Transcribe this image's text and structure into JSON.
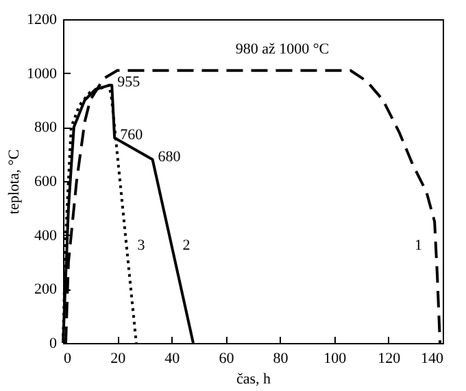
{
  "chart_data": {
    "type": "line",
    "xlabel": "čas, h",
    "ylabel": "teplota, °C",
    "xlim": [
      0,
      140
    ],
    "xticks": [
      0,
      20,
      40,
      60,
      80,
      100,
      120,
      140
    ],
    "ylim": [
      0,
      1200
    ],
    "yticks": [
      0,
      200,
      400,
      600,
      800,
      1000,
      1200
    ],
    "grid": false,
    "series": [
      {
        "name": "1",
        "color": "#000000",
        "line_style": "dashed",
        "x": [
          1,
          2,
          5,
          8,
          10,
          15,
          20,
          106,
          112,
          118,
          124,
          129,
          134,
          137,
          138,
          139
        ],
        "values": [
          0,
          300,
          600,
          820,
          900,
          980,
          1010,
          1010,
          970,
          900,
          780,
          660,
          560,
          450,
          250,
          0
        ]
      },
      {
        "name": "2",
        "color": "#000000",
        "line_style": "solid",
        "x": [
          0,
          2,
          4,
          8,
          12,
          17,
          18,
          19,
          33,
          48
        ],
        "values": [
          0,
          500,
          800,
          900,
          940,
          955,
          955,
          760,
          680,
          0
        ]
      },
      {
        "name": "3",
        "color": "#000000",
        "line_style": "dotted",
        "x": [
          0,
          1,
          3,
          6,
          10,
          17,
          18,
          20,
          27
        ],
        "values": [
          0,
          400,
          800,
          880,
          930,
          955,
          900,
          700,
          0
        ]
      }
    ],
    "annotations": [
      "980 až 1000 °C",
      {
        "text": "955",
        "x": 18,
        "y": 955
      },
      {
        "text": "760",
        "x": 19,
        "y": 760
      },
      {
        "text": "680",
        "x": 33,
        "y": 680
      }
    ]
  }
}
